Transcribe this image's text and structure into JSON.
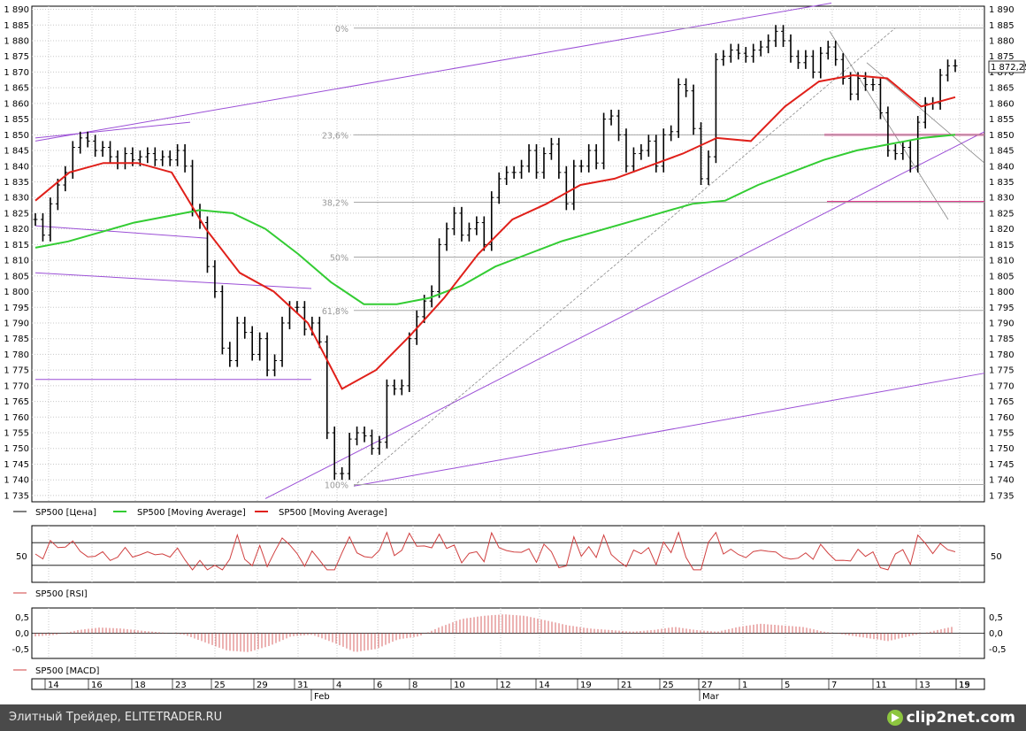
{
  "chart_data": [
    {
      "type": "line",
      "panel": "price",
      "title": "",
      "y_ticks": [
        1735,
        1740,
        1745,
        1750,
        1755,
        1760,
        1765,
        1770,
        1775,
        1780,
        1785,
        1790,
        1795,
        1800,
        1805,
        1810,
        1815,
        1820,
        1825,
        1830,
        1835,
        1840,
        1845,
        1850,
        1855,
        1860,
        1865,
        1870,
        1875,
        1880,
        1885,
        1890
      ],
      "y_tick_labels": [
        "1 735",
        "1 740",
        "1 745",
        "1 750",
        "1 755",
        "1 760",
        "1 765",
        "1 770",
        "1 775",
        "1 780",
        "1 785",
        "1 790",
        "1 795",
        "1 800",
        "1 805",
        "1 810",
        "1 815",
        "1 820",
        "1 825",
        "1 830",
        "1 835",
        "1 840",
        "1 845",
        "1 850",
        "1 855",
        "1 860",
        "1 865",
        "1 870",
        "1 875",
        "1 880",
        "1 885",
        "1 890"
      ],
      "ylim": [
        1733,
        1891
      ],
      "last_price_label": "1 872,25",
      "fib_levels": [
        {
          "label": "0%",
          "value": 1884
        },
        {
          "label": "23,6%",
          "value": 1850
        },
        {
          "label": "38,2%",
          "value": 1828.5
        },
        {
          "label": "50%",
          "value": 1811
        },
        {
          "label": "61,8%",
          "value": 1794
        },
        {
          "label": "100%",
          "value": 1738.5
        }
      ],
      "ohlc_close": [
        1823,
        1818,
        1828,
        1834,
        1838,
        1846,
        1849,
        1848,
        1845,
        1846,
        1843,
        1841,
        1844,
        1842,
        1843,
        1844,
        1842,
        1843,
        1842,
        1845,
        1840,
        1826,
        1822,
        1808,
        1800,
        1782,
        1778,
        1790,
        1787,
        1780,
        1785,
        1775,
        1778,
        1790,
        1795,
        1795,
        1788,
        1790,
        1784,
        1755,
        1742,
        1742,
        1753,
        1755,
        1754,
        1750,
        1752,
        1770,
        1769,
        1770,
        1785,
        1792,
        1797,
        1800,
        1815,
        1820,
        1825,
        1818,
        1820,
        1822,
        1815,
        1830,
        1836,
        1838,
        1838,
        1840,
        1845,
        1838,
        1844,
        1847,
        1838,
        1828,
        1840,
        1840,
        1845,
        1841,
        1855,
        1856,
        1850,
        1840,
        1844,
        1845,
        1848,
        1840,
        1850,
        1851,
        1866,
        1864,
        1852,
        1836,
        1843,
        1874,
        1875,
        1877,
        1876,
        1875,
        1877,
        1878,
        1880,
        1883,
        1880,
        1875,
        1873,
        1875,
        1870,
        1876,
        1878,
        1874,
        1868,
        1863,
        1868,
        1866,
        1866,
        1857,
        1845,
        1844,
        1846,
        1840,
        1854,
        1860,
        1860,
        1869,
        1872,
        1872
      ],
      "series": [
        {
          "name": "SP500 [Цена]",
          "color": "#000000"
        },
        {
          "name": "SP500 [Moving Average]",
          "color": "#33cc33",
          "values": [
            1814,
            1816,
            1819,
            1822,
            1824,
            1826,
            1825,
            1820,
            1812,
            1803,
            1796,
            1796,
            1798,
            1802,
            1808,
            1812,
            1816,
            1819,
            1822,
            1825,
            1828,
            1829,
            1834,
            1838,
            1842,
            1845,
            1847,
            1849,
            1850
          ]
        },
        {
          "name": "SP500 [Moving Average]",
          "color": "#e0201a",
          "values": [
            1829,
            1838,
            1841,
            1841,
            1838,
            1820,
            1806,
            1800,
            1790,
            1769,
            1775,
            1786,
            1798,
            1812,
            1823,
            1828,
            1834,
            1836,
            1840,
            1844,
            1849,
            1848,
            1859,
            1867,
            1869,
            1868,
            1859,
            1862
          ]
        }
      ],
      "legend": [
        "SP500 [Цена]",
        "SP500 [Moving Average]",
        "SP500 [Moving Average]"
      ]
    },
    {
      "type": "line",
      "panel": "rsi",
      "title": "",
      "series": [
        {
          "name": "SP500 [RSI]",
          "color": "#d04040"
        }
      ],
      "y_tick_labels": [
        "50"
      ],
      "ylim": [
        0,
        100
      ],
      "levels": [
        30,
        70
      ]
    },
    {
      "type": "bar",
      "panel": "macd",
      "title": "",
      "series": [
        {
          "name": "SP500 [MACD]",
          "color": "#d04040"
        }
      ],
      "y_tick_labels": [
        "0,5",
        "0,0",
        "-0,5"
      ],
      "ylim": [
        -0.8,
        0.8
      ],
      "values": [
        -0.1,
        -0.05,
        0.1,
        0.18,
        0.15,
        0.08,
        0.02,
        -0.05,
        -0.3,
        -0.55,
        -0.6,
        -0.4,
        -0.1,
        -0.05,
        -0.3,
        -0.6,
        -0.5,
        -0.2,
        -0.1,
        0.2,
        0.45,
        0.55,
        0.6,
        0.55,
        0.4,
        0.25,
        0.15,
        0.1,
        0.05,
        0.1,
        0.2,
        0.1,
        0.05,
        0.2,
        0.3,
        0.25,
        0.2,
        0.05,
        -0.05,
        -0.15,
        -0.25,
        -0.1,
        0.05,
        0.2
      ]
    }
  ],
  "x_axis": {
    "day_labels": [
      "14",
      "16",
      "18",
      "23",
      "25",
      "29",
      "31",
      "4",
      "6",
      "8",
      "10",
      "12",
      "14",
      "19",
      "21",
      "25",
      "27",
      "1",
      "5",
      "7",
      "11",
      "13",
      "15",
      "19"
    ],
    "month_labels": [
      "Feb",
      "Mar"
    ]
  },
  "footer": {
    "text": "Элитный Трейдер, ELITETRADER.RU",
    "logo": "clip2net.com",
    "logo_icon": "play-arrow-icon"
  }
}
